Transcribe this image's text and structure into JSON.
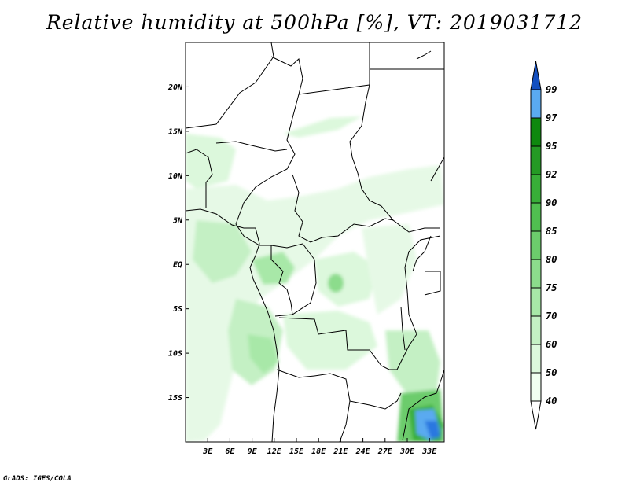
{
  "title": "Relative humidity at 500hPa [%], VT: 2019031712",
  "credit": "GrADS: IGES/COLA",
  "map": {
    "variable": "Relative humidity",
    "level": "500hPa",
    "units": "%",
    "valid_time": "2019031712",
    "lon_range": [
      0,
      35
    ],
    "lat_range": [
      -20,
      25
    ],
    "lat_ticks": [
      {
        "value": 20,
        "label": "20N"
      },
      {
        "value": 15,
        "label": "15N"
      },
      {
        "value": 10,
        "label": "10N"
      },
      {
        "value": 5,
        "label": "5N"
      },
      {
        "value": 0,
        "label": "EQ"
      },
      {
        "value": -5,
        "label": "5S"
      },
      {
        "value": -10,
        "label": "10S"
      },
      {
        "value": -15,
        "label": "15S"
      }
    ],
    "lon_ticks": [
      {
        "value": 3,
        "label": "3E"
      },
      {
        "value": 6,
        "label": "6E"
      },
      {
        "value": 9,
        "label": "9E"
      },
      {
        "value": 12,
        "label": "12E"
      },
      {
        "value": 15,
        "label": "15E"
      },
      {
        "value": 18,
        "label": "18E"
      },
      {
        "value": 21,
        "label": "21E"
      },
      {
        "value": 24,
        "label": "24E"
      },
      {
        "value": 27,
        "label": "27E"
      },
      {
        "value": 30,
        "label": "30E"
      },
      {
        "value": 33,
        "label": "33E"
      }
    ]
  },
  "colorbar": {
    "levels": [
      "40",
      "50",
      "60",
      "70",
      "75",
      "80",
      "85",
      "90",
      "92",
      "95",
      "97",
      "99"
    ],
    "colors": [
      "#f0fff0",
      "#dcf8dc",
      "#c4f0c4",
      "#a8e8a8",
      "#8cdc8c",
      "#6ccc6c",
      "#50bf50",
      "#38ae38",
      "#249a24",
      "#0e880e",
      "#5aaaf0",
      "#2a78e0",
      "#1450c0"
    ],
    "lower_end": "#ffffff"
  },
  "fields": [
    {
      "lon": 2.5,
      "lat": 4,
      "rx": 3,
      "ry": 2.5,
      "bin": 2
    },
    {
      "lon": 4,
      "lat": -1,
      "rx": 2.5,
      "ry": 2,
      "bin": 3
    },
    {
      "lon": 11,
      "lat": -0.5,
      "rx": 1.5,
      "ry": 1.5,
      "bin": 4
    },
    {
      "lon": 10,
      "lat": -10,
      "rx": 2,
      "ry": 2,
      "bin": 4
    },
    {
      "lon": 20.5,
      "lat": -2,
      "rx": 0.8,
      "ry": 1,
      "bin": 5
    },
    {
      "lon": 31.5,
      "lat": -18,
      "rx": 2.5,
      "ry": 2,
      "bin": 7
    },
    {
      "lon": 33.5,
      "lat": -17,
      "rx": 1,
      "ry": 1,
      "bin": 8
    },
    {
      "lon": 32.5,
      "lat": -17.5,
      "rx": 1.2,
      "ry": 1.3,
      "bin": 10
    },
    {
      "lon": 33.5,
      "lat": -19,
      "rx": 0.7,
      "ry": 0.8,
      "bin": 11
    }
  ]
}
